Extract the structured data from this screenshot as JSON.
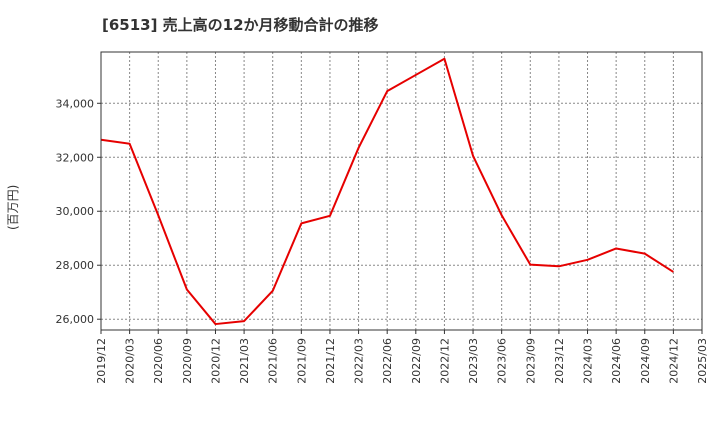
{
  "chart_data": {
    "type": "line",
    "title": "[6513]  売上高の12か月移動合計の推移",
    "ylabel": "(百万円)",
    "xlabel": "",
    "x_ticks": [
      "2019/12",
      "2020/03",
      "2020/06",
      "2020/09",
      "2020/12",
      "2021/03",
      "2021/06",
      "2021/09",
      "2021/12",
      "2022/03",
      "2022/06",
      "2022/09",
      "2022/12",
      "2023/03",
      "2023/06",
      "2023/09",
      "2023/12",
      "2024/03",
      "2024/06",
      "2024/09",
      "2024/12",
      "2025/03"
    ],
    "y_ticks": [
      26000,
      28000,
      30000,
      32000,
      34000
    ],
    "y_tick_labels": [
      "26,000",
      "28,000",
      "30,000",
      "32,000",
      "34,000"
    ],
    "ylim": [
      25600,
      35900
    ],
    "grid": true,
    "series": [
      {
        "name": "売上高",
        "color": "#e60000",
        "x": [
          "2019/12",
          "2020/03",
          "2020/06",
          "2020/09",
          "2020/12",
          "2021/03",
          "2021/06",
          "2021/09",
          "2021/12",
          "2022/03",
          "2022/06",
          "2022/09",
          "2022/12",
          "2023/03",
          "2023/06",
          "2023/09",
          "2023/12",
          "2024/03",
          "2024/06",
          "2024/09",
          "2024/12"
        ],
        "values": [
          32650,
          32500,
          29850,
          27100,
          25820,
          25930,
          27050,
          29550,
          29830,
          32350,
          34450,
          35050,
          35650,
          32050,
          29850,
          28020,
          27960,
          28200,
          28620,
          28430,
          27750
        ]
      }
    ]
  }
}
